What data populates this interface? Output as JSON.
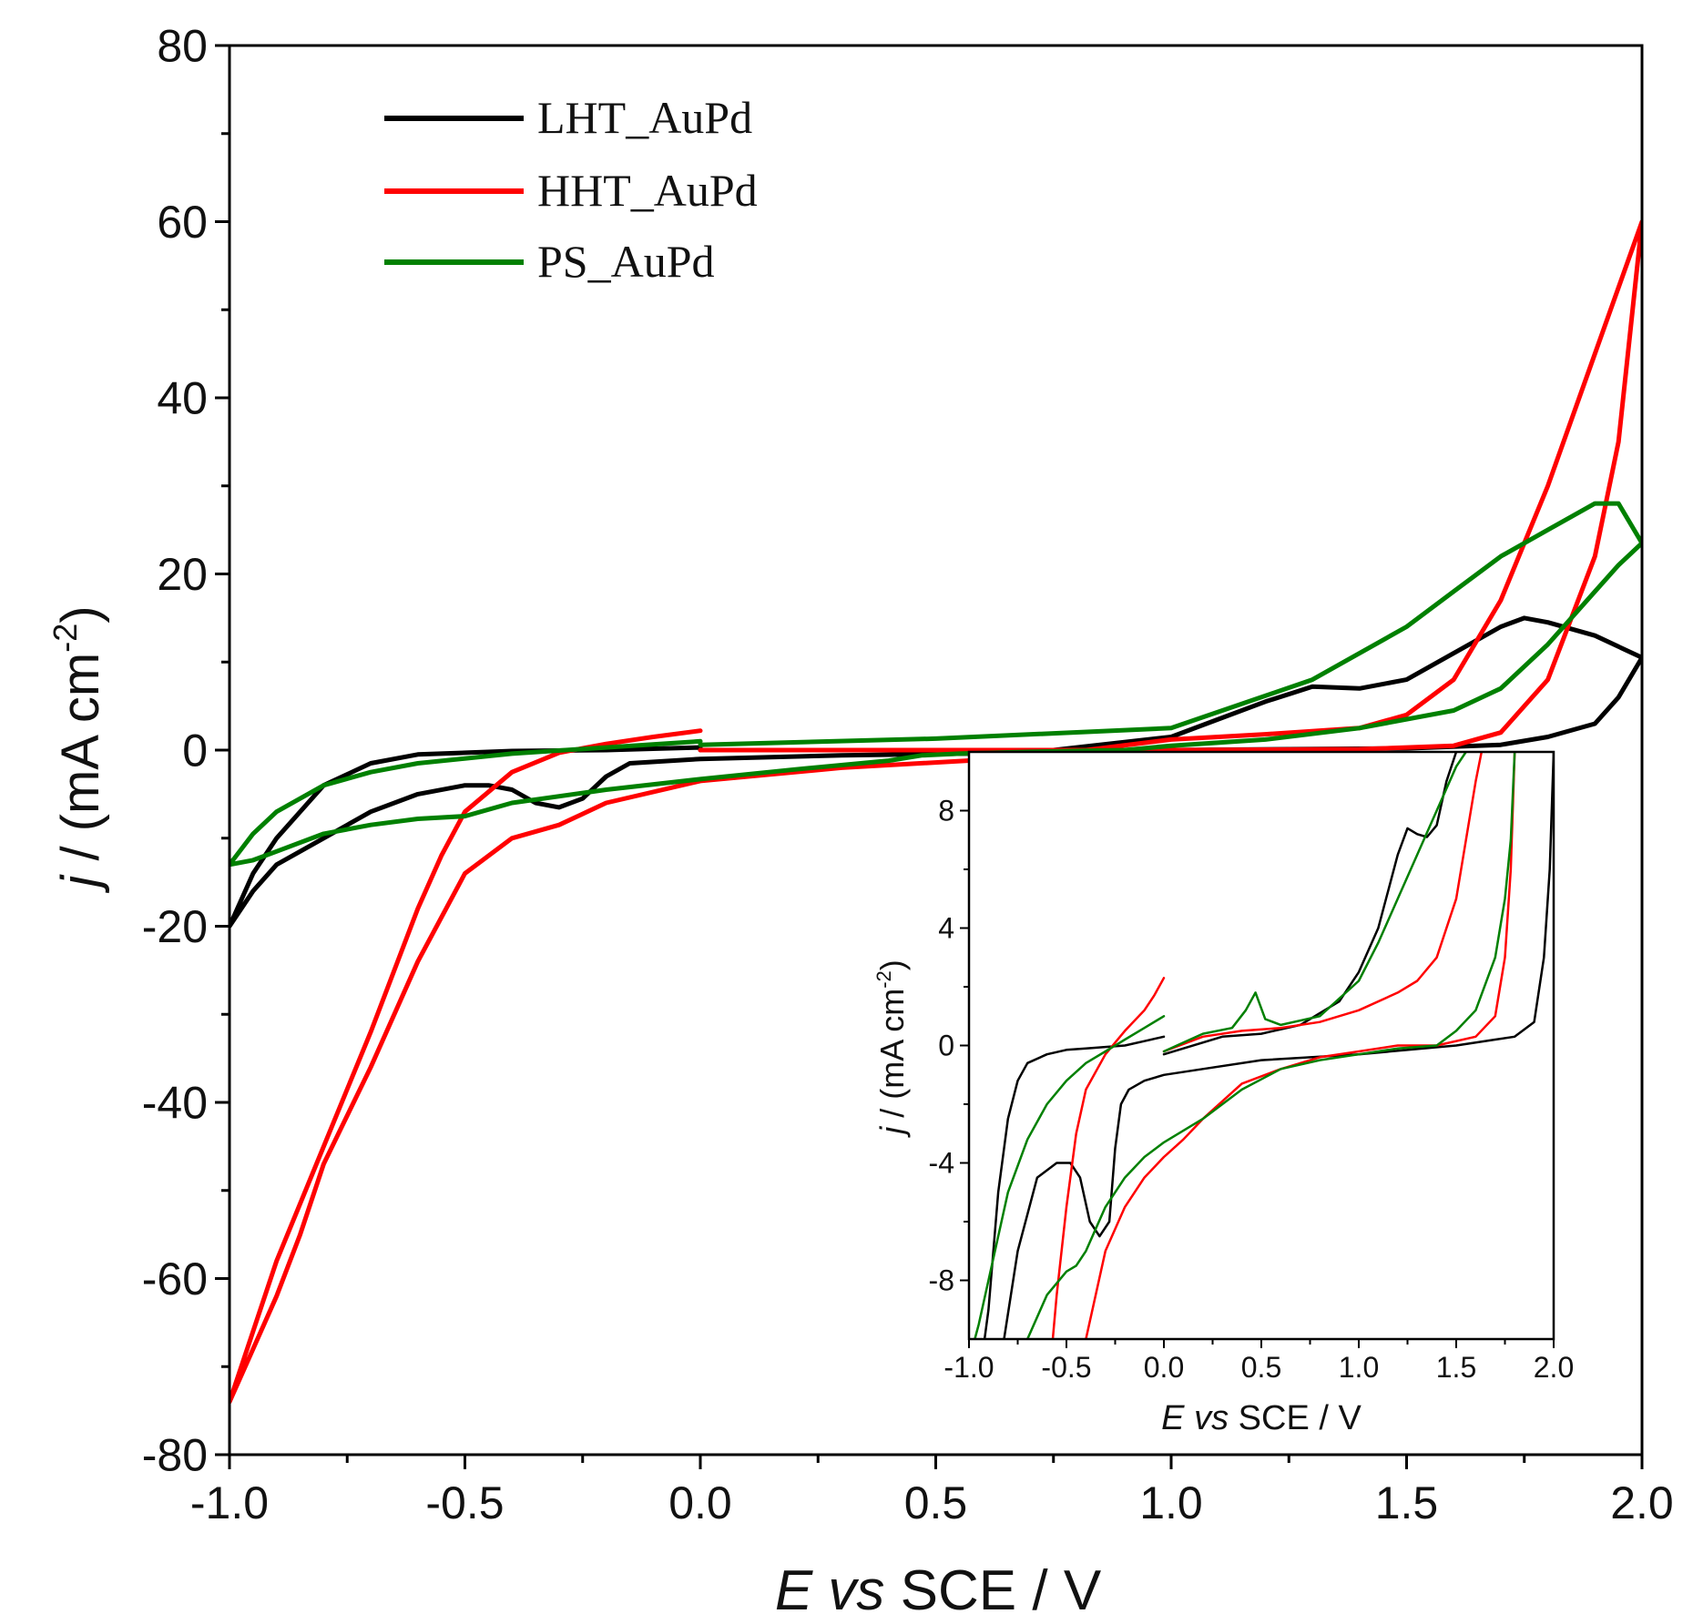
{
  "chart_data": [
    {
      "id": "main",
      "type": "line",
      "title": "",
      "xlabel": {
        "italic": "E",
        "italic2": "vs",
        "rest": "SCE / V"
      },
      "ylabel": {
        "italic": "j",
        "rest": " / (mA cm",
        "sup": "-2",
        "close": ")"
      },
      "xlim": [
        -1.0,
        2.0
      ],
      "ylim": [
        -80,
        80
      ],
      "xticks": [
        -1.0,
        -0.5,
        0.0,
        0.5,
        1.0,
        1.5,
        2.0
      ],
      "xtick_labels": [
        "-1.0",
        "-0.5",
        "0.0",
        "0.5",
        "1.0",
        "1.5",
        "2.0"
      ],
      "yticks": [
        -80,
        -60,
        -40,
        -20,
        0,
        20,
        40,
        60,
        80
      ],
      "ytick_labels": [
        "-80",
        "-60",
        "-40",
        "-20",
        "0",
        "20",
        "40",
        "60",
        "80"
      ],
      "legend": {
        "position": "top-left",
        "entries": [
          "LHT_AuPd",
          "HHT_AuPd",
          "PS_AuPd"
        ]
      },
      "series": [
        {
          "name": "LHT_AuPd",
          "color": "#000000",
          "x": [
            0.0,
            -0.1,
            -0.2,
            -0.4,
            -0.6,
            -0.7,
            -0.8,
            -0.9,
            -0.95,
            -1.0,
            -0.95,
            -0.9,
            -0.8,
            -0.7,
            -0.6,
            -0.5,
            -0.45,
            -0.4,
            -0.35,
            -0.3,
            -0.25,
            -0.2,
            -0.15,
            0.0,
            0.3,
            0.7,
            1.0,
            1.1,
            1.2,
            1.3,
            1.4,
            1.5,
            1.6,
            1.7,
            1.75,
            1.8,
            1.9,
            2.0,
            1.95,
            1.9,
            1.8,
            1.7,
            1.5,
            1.0,
            0.5,
            0.0
          ],
          "y": [
            0.3,
            0.15,
            0.0,
            -0.1,
            -0.5,
            -1.5,
            -4,
            -10,
            -14,
            -20,
            -16,
            -13,
            -10,
            -7,
            -5,
            -4,
            -4,
            -4.5,
            -6,
            -6.5,
            -5.5,
            -3,
            -1.5,
            -1,
            -0.6,
            -0.3,
            1.5,
            3.5,
            5.5,
            7.2,
            7,
            8,
            11,
            14,
            15,
            14.5,
            13,
            10.5,
            6,
            3,
            1.5,
            0.6,
            0.2,
            0,
            0,
            0
          ]
        },
        {
          "name": "HHT_AuPd",
          "color": "#ff0000",
          "x": [
            0.0,
            -0.1,
            -0.2,
            -0.3,
            -0.4,
            -0.5,
            -0.55,
            -0.6,
            -0.7,
            -0.8,
            -0.9,
            -1.0,
            -0.95,
            -0.9,
            -0.85,
            -0.8,
            -0.7,
            -0.6,
            -0.5,
            -0.4,
            -0.3,
            -0.2,
            0.0,
            0.3,
            0.7,
            1.0,
            1.2,
            1.4,
            1.5,
            1.6,
            1.7,
            1.8,
            1.9,
            2.0,
            1.95,
            1.9,
            1.8,
            1.7,
            1.6,
            1.4,
            1.0,
            0.5,
            0.0
          ],
          "y": [
            2.2,
            1.5,
            0.7,
            -0.3,
            -2.5,
            -7,
            -12,
            -18,
            -32,
            -45,
            -58,
            -74,
            -68,
            -62,
            -55,
            -47,
            -36,
            -24,
            -14,
            -10,
            -8.5,
            -6,
            -3.5,
            -2,
            -0.8,
            1.2,
            1.8,
            2.5,
            4,
            8,
            17,
            30,
            45,
            60,
            35,
            22,
            8,
            2,
            0.5,
            0.1,
            0,
            0,
            0
          ]
        },
        {
          "name": "PS_AuPd",
          "color": "#008000",
          "x": [
            0.0,
            -0.2,
            -0.4,
            -0.6,
            -0.7,
            -0.8,
            -0.9,
            -0.95,
            -1.0,
            -0.95,
            -0.9,
            -0.8,
            -0.7,
            -0.6,
            -0.5,
            -0.4,
            -0.2,
            0.0,
            0.2,
            0.4,
            0.47,
            0.55,
            0.7,
            0.9,
            1.0,
            1.2,
            1.4,
            1.6,
            1.7,
            1.8,
            1.9,
            1.95,
            2.0,
            1.95,
            1.9,
            1.8,
            1.7,
            1.6,
            1.5,
            1.3,
            1.0,
            0.5,
            0.0
          ],
          "y": [
            1.0,
            0.3,
            -0.4,
            -1.5,
            -2.5,
            -4,
            -7,
            -9.5,
            -13,
            -12.5,
            -11.5,
            -9.5,
            -8.5,
            -7.8,
            -7.5,
            -6,
            -4.5,
            -3.3,
            -2.2,
            -1.2,
            -0.6,
            -0.4,
            -0.2,
            0,
            0.5,
            1.2,
            2.5,
            4.5,
            7,
            12,
            18,
            21,
            23.5,
            28,
            28,
            25,
            22,
            18,
            14,
            8,
            2.5,
            1.3,
            0.6
          ]
        }
      ]
    },
    {
      "id": "inset",
      "type": "line",
      "title": "",
      "xlabel": {
        "italic": "E",
        "italic2": "vs",
        "rest": "SCE / V"
      },
      "ylabel": {
        "italic": "j",
        "rest": " / (mA cm",
        "sup": "-2",
        "close": ")"
      },
      "xlim": [
        -1.0,
        2.0
      ],
      "ylim": [
        -10,
        10
      ],
      "xticks": [
        -1.0,
        -0.5,
        0.0,
        0.5,
        1.0,
        1.5,
        2.0
      ],
      "xtick_labels": [
        "-1.0",
        "-0.5",
        "0.0",
        "0.5",
        "1.0",
        "1.5",
        "2.0"
      ],
      "yticks": [
        -8,
        -4,
        0,
        4,
        8
      ],
      "ytick_labels": [
        "-8",
        "-4",
        "0",
        "4",
        "8"
      ],
      "series": [
        {
          "name": "LHT_AuPd",
          "color": "#000000",
          "x": [
            0.0,
            -0.1,
            -0.2,
            -0.3,
            -0.4,
            -0.5,
            -0.6,
            -0.7,
            -0.75,
            -0.8,
            -0.85,
            -0.9,
            -0.92
          ],
          "y": [
            0.3,
            0.15,
            0.0,
            -0.05,
            -0.1,
            -0.15,
            -0.3,
            -0.6,
            -1.2,
            -2.5,
            -5,
            -9,
            -10
          ]
        },
        {
          "name": "LHT_AuPd",
          "color": "#000000",
          "x": [
            -0.82,
            -0.75,
            -0.65,
            -0.55,
            -0.48,
            -0.43,
            -0.38,
            -0.33,
            -0.28,
            -0.25,
            -0.22,
            -0.18,
            -0.1,
            0.0,
            0.2,
            0.5,
            1.0,
            1.5,
            1.7,
            1.8,
            1.9,
            1.95,
            1.98,
            2.0
          ],
          "y": [
            -10,
            -7,
            -4.5,
            -4,
            -4,
            -4.5,
            -6,
            -6.5,
            -6,
            -3.5,
            -2,
            -1.5,
            -1.2,
            -1.0,
            -0.8,
            -0.5,
            -0.3,
            0,
            0.2,
            0.3,
            0.8,
            3,
            6,
            10
          ]
        },
        {
          "name": "LHT_AuPd",
          "color": "#000000",
          "x": [
            0.0,
            0.3,
            0.5,
            0.7,
            0.9,
            1.0,
            1.1,
            1.2,
            1.25,
            1.3,
            1.35,
            1.4,
            1.45,
            1.5
          ],
          "y": [
            -0.3,
            0.3,
            0.4,
            0.7,
            1.5,
            2.5,
            4,
            6.5,
            7.4,
            7.2,
            7.1,
            7.5,
            9,
            10
          ]
        },
        {
          "name": "HHT_AuPd",
          "color": "#ff0000",
          "x": [
            0.0,
            -0.05,
            -0.1,
            -0.2,
            -0.3,
            -0.4,
            -0.45,
            -0.5,
            -0.55,
            -0.57
          ],
          "y": [
            2.3,
            1.7,
            1.2,
            0.5,
            -0.3,
            -1.5,
            -3,
            -5.5,
            -8.5,
            -10
          ]
        },
        {
          "name": "HHT_AuPd",
          "color": "#ff0000",
          "x": [
            -0.4,
            -0.3,
            -0.2,
            -0.1,
            0.0,
            0.1,
            0.2,
            0.4,
            0.6,
            0.8,
            1.0,
            1.2,
            1.4,
            1.6,
            1.7,
            1.75,
            1.78,
            1.8
          ],
          "y": [
            -10,
            -7,
            -5.5,
            -4.5,
            -3.8,
            -3.2,
            -2.5,
            -1.3,
            -0.8,
            -0.4,
            -0.2,
            0,
            0,
            0.3,
            1,
            3,
            6,
            10
          ]
        },
        {
          "name": "HHT_AuPd",
          "color": "#ff0000",
          "x": [
            0.0,
            0.2,
            0.4,
            0.6,
            0.8,
            1.0,
            1.2,
            1.3,
            1.4,
            1.5,
            1.55,
            1.6,
            1.63
          ],
          "y": [
            -0.2,
            0.3,
            0.5,
            0.6,
            0.8,
            1.2,
            1.8,
            2.2,
            3,
            5,
            7,
            9,
            10
          ]
        },
        {
          "name": "PS_AuPd",
          "color": "#008000",
          "x": [
            0.0,
            -0.1,
            -0.2,
            -0.3,
            -0.4,
            -0.5,
            -0.6,
            -0.7,
            -0.8,
            -0.85,
            -0.9,
            -0.95,
            -0.97
          ],
          "y": [
            1.0,
            0.6,
            0.2,
            -0.2,
            -0.6,
            -1.2,
            -2,
            -3.2,
            -5,
            -6.5,
            -8,
            -9.5,
            -10
          ]
        },
        {
          "name": "PS_AuPd",
          "color": "#008000",
          "x": [
            -0.7,
            -0.6,
            -0.5,
            -0.45,
            -0.4,
            -0.3,
            -0.2,
            -0.1,
            0.0,
            0.2,
            0.4,
            0.6,
            0.8,
            1.0,
            1.2,
            1.4,
            1.5,
            1.6,
            1.7,
            1.75,
            1.78,
            1.8
          ],
          "y": [
            -10,
            -8.5,
            -7.7,
            -7.5,
            -7,
            -5.5,
            -4.5,
            -3.8,
            -3.3,
            -2.5,
            -1.5,
            -0.8,
            -0.5,
            -0.3,
            -0.1,
            0,
            0.5,
            1.2,
            3,
            5,
            7,
            10
          ]
        },
        {
          "name": "PS_AuPd",
          "color": "#008000",
          "x": [
            0.0,
            0.2,
            0.35,
            0.42,
            0.47,
            0.52,
            0.6,
            0.8,
            1.0,
            1.1,
            1.2,
            1.3,
            1.4,
            1.5,
            1.55
          ],
          "y": [
            -0.2,
            0.4,
            0.6,
            1.2,
            1.8,
            0.9,
            0.7,
            1.0,
            2.2,
            3.5,
            5,
            6.5,
            8,
            9.5,
            10
          ]
        }
      ]
    }
  ]
}
